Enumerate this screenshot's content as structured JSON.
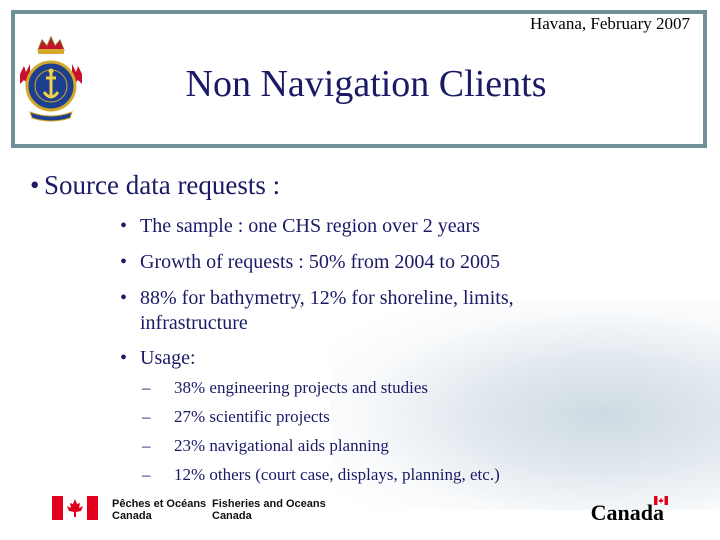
{
  "header": {
    "date": "Havana, February 2007"
  },
  "title": "Non Navigation Clients",
  "main_bullet": "Source data requests :",
  "sub_bullets": [
    "The sample : one CHS region over 2 years",
    "Growth of requests : 50% from 2004 to 2005",
    "88% for bathymetry, 12% for shoreline, limits,",
    "infrastructure",
    "Usage:"
  ],
  "usage_items": [
    "38% engineering projects and studies",
    "27% scientific projects",
    "23% navigational aids planning",
    "12% others (court case, displays, planning, etc.)"
  ],
  "footer": {
    "fr_line1": "Pêches et Océans",
    "fr_line2": "Canada",
    "en_line1": "Fisheries and Oceans",
    "en_line2": "Canada",
    "wordmark": "Canada"
  },
  "colors": {
    "frame": "#6f8f99",
    "text": "#1a1a66",
    "flag_red": "#e0001b"
  },
  "icons": {
    "crest": "chs-crest-icon",
    "flag": "canada-flag-icon"
  }
}
